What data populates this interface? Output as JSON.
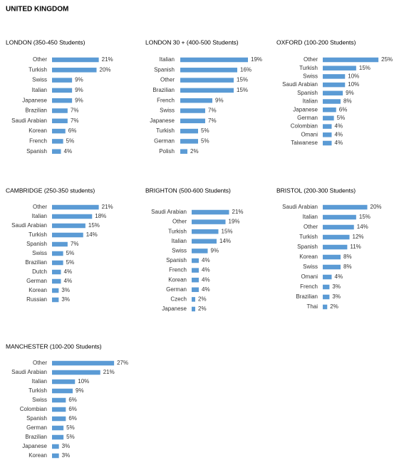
{
  "title": "UNITED KINGDOM",
  "chart_data": [
    {
      "type": "bar",
      "orientation": "horizontal",
      "title": "LONDON (350-450 Students)",
      "color": "#5b9bd5",
      "xlim": [
        0,
        32
      ],
      "categories": [
        "Other",
        "Turkish",
        "Swiss",
        "Italian",
        "Japanese",
        "Brazilian",
        "Saudi Arabian",
        "Korean",
        "French",
        "Spanish"
      ],
      "values": [
        21,
        20,
        9,
        9,
        9,
        7,
        7,
        6,
        5,
        4
      ],
      "value_labels": [
        "21%",
        "20%",
        "9%",
        "9%",
        "9%",
        "7%",
        "7%",
        "6%",
        "5%",
        "4%"
      ]
    },
    {
      "type": "bar",
      "orientation": "horizontal",
      "title": "LONDON 30 + (400-500 Students)",
      "color": "#5b9bd5",
      "xlim": [
        0,
        20
      ],
      "categories": [
        "Italian",
        "Spanish",
        "Other",
        "Brazilian",
        "French",
        "Swiss",
        "Japanese",
        "Turkish",
        "German",
        "Polish"
      ],
      "values": [
        19,
        16,
        15,
        15,
        9,
        7,
        7,
        5,
        5,
        2
      ],
      "value_labels": [
        "19%",
        "16%",
        "15%",
        "15%",
        "9%",
        "7%",
        "7%",
        "5%",
        "5%",
        "2%"
      ]
    },
    {
      "type": "bar",
      "orientation": "horizontal",
      "title": "OXFORD (100-200 Students)",
      "color": "#5b9bd5",
      "xlim": [
        0,
        32
      ],
      "categories": [
        "Other",
        "Turkish",
        "Swiss",
        "Saudi Arabian",
        "Spanish",
        "Italian",
        "Japanese",
        "German",
        "Colombian",
        "Omani",
        "Taiwanese"
      ],
      "values": [
        25,
        15,
        10,
        10,
        9,
        8,
        6,
        5,
        4,
        4,
        4
      ],
      "value_labels": [
        "25%",
        "15%",
        "10%",
        "10%",
        "9%",
        "8%",
        "6%",
        "5%",
        "4%",
        "4%",
        "4%"
      ]
    },
    {
      "type": "bar",
      "orientation": "horizontal",
      "title": "CAMBRIDGE (250-350 students)",
      "color": "#5b9bd5",
      "xlim": [
        0,
        32
      ],
      "categories": [
        "Other",
        "Italian",
        "Saudi Arabian",
        "Turkish",
        "Spanish",
        "Swiss",
        "Brazilian",
        "Dutch",
        "German",
        "Korean",
        "Russian"
      ],
      "values": [
        21,
        18,
        15,
        14,
        7,
        5,
        5,
        4,
        4,
        3,
        3
      ],
      "value_labels": [
        "21%",
        "18%",
        "15%",
        "14%",
        "7%",
        "5%",
        "5%",
        "4%",
        "4%",
        "3%",
        "3%"
      ]
    },
    {
      "type": "bar",
      "orientation": "horizontal",
      "title": "BRIGHTON (500-600 Students)",
      "color": "#5b9bd5",
      "xlim": [
        0,
        40
      ],
      "categories": [
        "Saudi Arabian",
        "Other",
        "Turkish",
        "Italian",
        "Swiss",
        "Spanish",
        "French",
        "Korean",
        "German",
        "Czech",
        "Japanese"
      ],
      "values": [
        21,
        19,
        15,
        14,
        9,
        4,
        4,
        4,
        4,
        2,
        2
      ],
      "value_labels": [
        "21%",
        "19%",
        "15%",
        "14%",
        "9%",
        "4%",
        "4%",
        "4%",
        "4%",
        "2%",
        "2%"
      ]
    },
    {
      "type": "bar",
      "orientation": "horizontal",
      "title": "BRISTOL  (200-300 Students)",
      "color": "#5b9bd5",
      "xlim": [
        0,
        32
      ],
      "categories": [
        "Saudi Arabian",
        "Italian",
        "Other",
        "Turkish",
        "Spanish",
        "Korean",
        "Swiss",
        "Omani",
        "French",
        "Brazilian",
        "Thai"
      ],
      "values": [
        20,
        15,
        14,
        12,
        11,
        8,
        8,
        4,
        3,
        3,
        2
      ],
      "value_labels": [
        "20%",
        "15%",
        "14%",
        "12%",
        "11%",
        "8%",
        "8%",
        "4%",
        "3%",
        "3%",
        "2%"
      ]
    },
    {
      "type": "bar",
      "orientation": "horizontal",
      "title": "MANCHESTER (100-200 Students)",
      "color": "#5b9bd5",
      "xlim": [
        0,
        31
      ],
      "categories": [
        "Other",
        "Saudi Arabian",
        "Italian",
        "Turkish",
        "Swiss",
        "Colombian",
        "Spanish",
        "German",
        "Brazilian",
        "Japanese",
        "Korean"
      ],
      "values": [
        27,
        21,
        10,
        9,
        6,
        6,
        6,
        5,
        5,
        3,
        3
      ],
      "value_labels": [
        "27%",
        "21%",
        "10%",
        "9%",
        "6%",
        "6%",
        "6%",
        "5%",
        "5%",
        "3%",
        "3%"
      ]
    }
  ]
}
